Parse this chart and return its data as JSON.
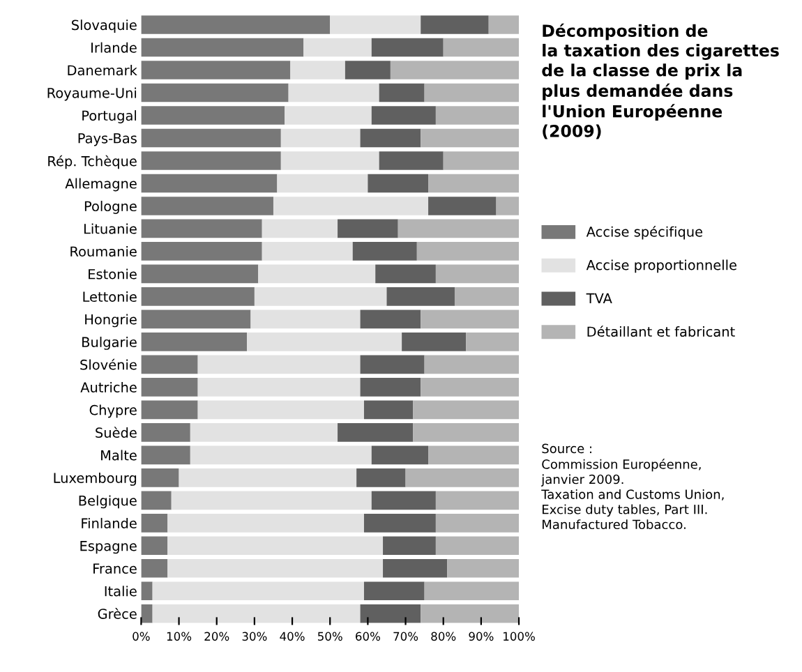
{
  "chart_data": {
    "type": "bar",
    "orientation": "horizontal",
    "stacked": true,
    "title": "Décomposition de\nla taxation des cigarettes\nde la classe de prix la\nplus demandée dans\nl'Union Européenne\n(2009)",
    "categories": [
      "Slovaquie",
      "Irlande",
      "Danemark",
      "Royaume-Uni",
      "Portugal",
      "Pays-Bas",
      "Rép. Tchèque",
      "Allemagne",
      "Pologne",
      "Lituanie",
      "Roumanie",
      "Estonie",
      "Lettonie",
      "Hongrie",
      "Bulgarie",
      "Slovénie",
      "Autriche",
      "Chypre",
      "Suède",
      "Malte",
      "Luxembourg",
      "Belgique",
      "Finlande",
      "Espagne",
      "France",
      "Italie",
      "Grèce"
    ],
    "series": [
      {
        "name": "Accise spécifique",
        "color": "#787878",
        "values": [
          50,
          43,
          39.5,
          39,
          38,
          37,
          37,
          36,
          35,
          32,
          32,
          31,
          30,
          29,
          28,
          15,
          15,
          15,
          13,
          13,
          10,
          8,
          7,
          7,
          7,
          3,
          3
        ]
      },
      {
        "name": "Accise proportionnelle",
        "color": "#e2e2e2",
        "values": [
          24,
          18,
          14.5,
          24,
          23,
          21,
          26,
          24,
          41,
          20,
          24,
          31,
          35,
          29,
          41,
          43,
          43,
          44,
          39,
          48,
          47,
          53,
          52,
          57,
          57,
          56,
          55
        ]
      },
      {
        "name": "TVA",
        "color": "#606060",
        "values": [
          18,
          19,
          12,
          12,
          17,
          16,
          17,
          16,
          18,
          16,
          17,
          16,
          18,
          16,
          17,
          17,
          16,
          13,
          20,
          15,
          13,
          17,
          19,
          14,
          17,
          16,
          16
        ]
      },
      {
        "name": "Détaillant et fabricant",
        "color": "#b4b4b4",
        "values": [
          8,
          20,
          34,
          25,
          22,
          26,
          20,
          24,
          6,
          32,
          27,
          22,
          17,
          26,
          14,
          25,
          26,
          28,
          28,
          24,
          30,
          22,
          22,
          22,
          19,
          25,
          26
        ]
      }
    ],
    "xlim": [
      0,
      100
    ],
    "xticks": [
      {
        "value": 0,
        "label": "0%"
      },
      {
        "value": 10,
        "label": "10%"
      },
      {
        "value": 20,
        "label": "20%"
      },
      {
        "value": 30,
        "label": "30%"
      },
      {
        "value": 40,
        "label": "40%"
      },
      {
        "value": 50,
        "label": "50%"
      },
      {
        "value": 60,
        "label": "60%"
      },
      {
        "value": 70,
        "label": "70%"
      },
      {
        "value": 80,
        "label": "80%"
      },
      {
        "value": 90,
        "label": "90%"
      },
      {
        "value": 100,
        "label": "100%"
      }
    ],
    "legend": "right",
    "grid": false,
    "annotations": [
      "Source :\nCommission Européenne,\njanvier 2009.\nTaxation and Customs Union,\nExcise duty tables, Part III.\nManufactured Tobacco."
    ]
  }
}
